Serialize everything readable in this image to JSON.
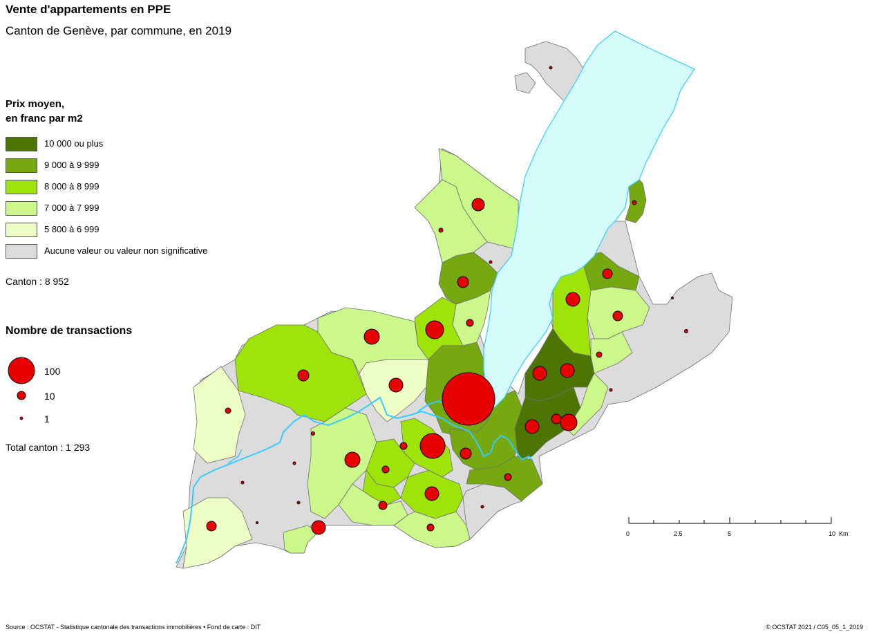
{
  "header": {
    "title": "Vente d'appartements en PPE",
    "subtitle": "Canton de Genève, par commune, en 2019"
  },
  "legend_price": {
    "title_line1": "Prix moyen,",
    "title_line2": "en franc par m2",
    "classes": [
      {
        "label": "10 000 ou plus",
        "color": "#4d7504"
      },
      {
        "label": "9 000 à 9 999",
        "color": "#76a80f"
      },
      {
        "label": "8 000 à 8 999",
        "color": "#9ee30a"
      },
      {
        "label": "7 000 à 7 999",
        "color": "#ccf78a"
      },
      {
        "label": "5 800 à 6 999",
        "color": "#eeffc6"
      },
      {
        "label": "Aucune valeur ou valeur non significative",
        "color": "#dcdcdc"
      }
    ],
    "canton_average": "Canton : 8 952"
  },
  "legend_transactions": {
    "title": "Nombre de transactions",
    "sizes": [
      {
        "label": "100",
        "value": 100
      },
      {
        "label": "10",
        "value": 10
      },
      {
        "label": "1",
        "value": 1
      }
    ],
    "total": "Total canton : 1 293"
  },
  "scale_bar": {
    "labels": [
      "0",
      "2.5",
      "5",
      "10  Km"
    ]
  },
  "colors": {
    "lake": "#d4fafa",
    "river": "#33ccff",
    "circle": "#e60000",
    "border": "#6e6e6e"
  },
  "footer": {
    "source": "Source : OCSTAT - Statistique cantonale des transactions immobilières • Fond de carte : DIT",
    "copyright": "© OCSTAT 2021 / C05_05_1_2019"
  }
}
